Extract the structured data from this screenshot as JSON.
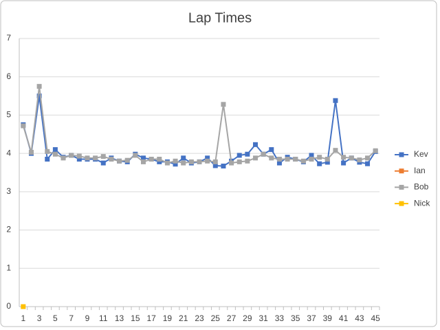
{
  "chart_data": {
    "type": "line",
    "title": "Lap Times",
    "categories": [
      1,
      null,
      3,
      null,
      5,
      null,
      7,
      null,
      9,
      null,
      11,
      null,
      13,
      null,
      15,
      null,
      17,
      null,
      19,
      null,
      21,
      null,
      23,
      null,
      25,
      null,
      27,
      null,
      29,
      null,
      31,
      null,
      33,
      null,
      35,
      null,
      37,
      null,
      39,
      null,
      41,
      null,
      43,
      null,
      45
    ],
    "series": [
      {
        "name": "Kev",
        "color": "#4472c4",
        "values": [
          4.75,
          4.0,
          5.5,
          3.85,
          4.1,
          3.9,
          3.95,
          3.85,
          3.85,
          3.85,
          3.75,
          3.88,
          3.8,
          3.78,
          3.98,
          3.88,
          3.85,
          3.78,
          3.78,
          3.72,
          3.88,
          3.75,
          3.78,
          3.88,
          3.68,
          3.67,
          3.8,
          3.95,
          3.98,
          4.23,
          3.98,
          4.1,
          3.75,
          3.9,
          3.85,
          3.78,
          3.95,
          3.73,
          3.77,
          5.38,
          3.75,
          3.88,
          3.77,
          3.73,
          4.05
        ]
      },
      {
        "name": "Ian",
        "color": "#ed7d31",
        "values": [
          null,
          null,
          null,
          null,
          null,
          null,
          null,
          null,
          null,
          null,
          null,
          null,
          null,
          null,
          null,
          null,
          null,
          null,
          null,
          null,
          null,
          null,
          null,
          null,
          null,
          null,
          null,
          null,
          null,
          null,
          null,
          null,
          null,
          null,
          null,
          null,
          null,
          null,
          null,
          null,
          null,
          null,
          null,
          null,
          null
        ]
      },
      {
        "name": "Bob",
        "color": "#a5a5a5",
        "values": [
          4.72,
          4.03,
          5.75,
          4.05,
          3.98,
          3.88,
          3.95,
          3.93,
          3.88,
          3.88,
          3.92,
          3.85,
          3.8,
          3.82,
          3.95,
          3.78,
          3.85,
          3.85,
          3.75,
          3.8,
          3.75,
          3.78,
          3.78,
          3.8,
          3.78,
          5.28,
          3.75,
          3.78,
          3.8,
          3.88,
          3.98,
          3.88,
          3.85,
          3.85,
          3.85,
          3.8,
          3.85,
          3.9,
          3.85,
          4.08,
          3.9,
          3.88,
          3.83,
          3.88,
          4.07
        ]
      },
      {
        "name": "Nick",
        "color": "#ffc000",
        "values": [
          0,
          null,
          null,
          null,
          null,
          null,
          null,
          null,
          null,
          null,
          null,
          null,
          null,
          null,
          null,
          null,
          null,
          null,
          null,
          null,
          null,
          null,
          null,
          null,
          null,
          null,
          null,
          null,
          null,
          null,
          null,
          null,
          null,
          null,
          null,
          null,
          null,
          null,
          null,
          null,
          null,
          null,
          null,
          null,
          null
        ]
      }
    ],
    "ylim": [
      0,
      7
    ],
    "yticks": [
      0,
      1,
      2,
      3,
      4,
      5,
      6,
      7
    ],
    "grid": true,
    "legend": "right"
  }
}
